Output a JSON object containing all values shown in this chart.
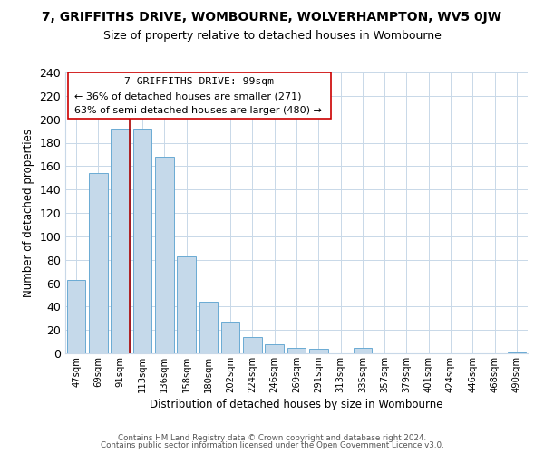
{
  "title": "7, GRIFFITHS DRIVE, WOMBOURNE, WOLVERHAMPTON, WV5 0JW",
  "subtitle": "Size of property relative to detached houses in Wombourne",
  "xlabel": "Distribution of detached houses by size in Wombourne",
  "ylabel": "Number of detached properties",
  "bar_color": "#c5d9ea",
  "bar_edge_color": "#6aaad4",
  "bin_labels": [
    "47sqm",
    "69sqm",
    "91sqm",
    "113sqm",
    "136sqm",
    "158sqm",
    "180sqm",
    "202sqm",
    "224sqm",
    "246sqm",
    "269sqm",
    "291sqm",
    "313sqm",
    "335sqm",
    "357sqm",
    "379sqm",
    "401sqm",
    "424sqm",
    "446sqm",
    "468sqm",
    "490sqm"
  ],
  "bar_heights": [
    63,
    154,
    192,
    192,
    168,
    83,
    44,
    27,
    14,
    8,
    5,
    4,
    0,
    5,
    0,
    0,
    0,
    0,
    0,
    0,
    1
  ],
  "ylim": [
    0,
    240
  ],
  "yticks": [
    0,
    20,
    40,
    60,
    80,
    100,
    120,
    140,
    160,
    180,
    200,
    220,
    240
  ],
  "property_line_color": "#aa0000",
  "annotation_title": "7 GRIFFITHS DRIVE: 99sqm",
  "annotation_line1": "← 36% of detached houses are smaller (271)",
  "annotation_line2": "63% of semi-detached houses are larger (480) →",
  "footer_line1": "Contains HM Land Registry data © Crown copyright and database right 2024.",
  "footer_line2": "Contains public sector information licensed under the Open Government Licence v3.0.",
  "background_color": "#ffffff",
  "grid_color": "#c8d8e8"
}
